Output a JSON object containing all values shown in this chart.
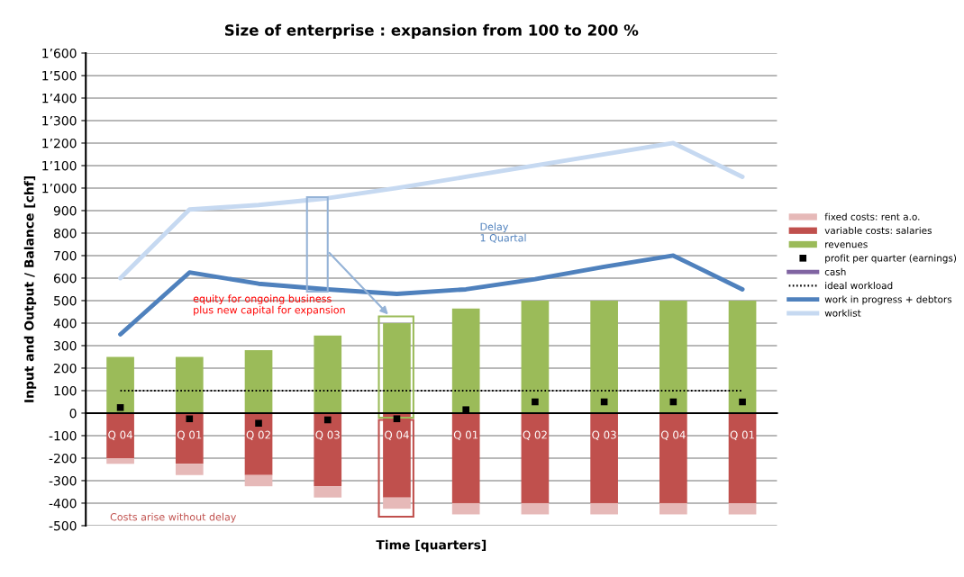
{
  "chart_data": {
    "type": "bar",
    "title": "Size of enterprise : expansion from 100 to 200 %",
    "xlabel": "Time [quarters]",
    "ylabel": "Input and Output / Balance [chf]",
    "categories": [
      "Q 04",
      "Q 01",
      "Q 02",
      "Q 03",
      "Q 04",
      "Q 01",
      "Q 02",
      "Q 03",
      "Q 04",
      "Q 01"
    ],
    "stacked": true,
    "series": [
      {
        "name": "revenues",
        "color": "#9bbb59",
        "values": [
          250,
          250,
          280,
          345,
          400,
          465,
          500,
          500,
          500,
          500
        ]
      },
      {
        "name": "variable costs: salaries",
        "color": "#c0504d",
        "values": [
          -200,
          -225,
          -275,
          -325,
          -375,
          -400,
          -400,
          -400,
          -400,
          -400
        ]
      },
      {
        "name": "fixed costs: rent a.o.",
        "color": "#e6b9b8",
        "values": [
          -25,
          -50,
          -50,
          -50,
          -50,
          -50,
          -50,
          -50,
          -50,
          -50
        ]
      },
      {
        "name": "profit per quarter (earnings)",
        "type": "scatter",
        "marker": "square",
        "color": "#000000",
        "values": [
          25,
          -25,
          -45,
          -30,
          -25,
          15,
          50,
          50,
          50,
          50
        ]
      },
      {
        "name": "cash",
        "type": "line",
        "color": "#8064a2",
        "values": [
          null,
          null,
          null,
          null,
          null,
          null,
          null,
          null,
          null,
          null
        ]
      },
      {
        "name": "ideal workload",
        "type": "line",
        "line_style": "dotted",
        "color": "#000000",
        "values": [
          100,
          100,
          100,
          100,
          100,
          100,
          100,
          100,
          100,
          100
        ]
      },
      {
        "name": "work in progress + debtors",
        "type": "line",
        "color": "#4f81bd",
        "values": [
          350,
          625,
          575,
          550,
          530,
          550,
          595,
          650,
          700,
          550
        ]
      },
      {
        "name": "worklist",
        "type": "line",
        "color": "#c6d9f1",
        "values": [
          600,
          905,
          925,
          955,
          1000,
          1050,
          1100,
          1150,
          1200,
          1050
        ]
      }
    ],
    "ylim": [
      -500,
      1600
    ],
    "yticks": [
      -500,
      -400,
      -300,
      -200,
      -100,
      0,
      100,
      200,
      300,
      400,
      500,
      600,
      700,
      800,
      900,
      {
        "value": 1000,
        "label": "1’000"
      },
      {
        "value": 1100,
        "label": "1’100"
      },
      {
        "value": 1200,
        "label": "1’200"
      },
      {
        "value": 1300,
        "label": "1’300"
      },
      {
        "value": 1400,
        "label": "1’400"
      },
      {
        "value": 1500,
        "label": "1’500"
      },
      {
        "value": 1600,
        "label": "1’600"
      }
    ],
    "grid": "y",
    "legend": "right",
    "annotations": [
      "Delay\n1 Quartal",
      "equity for ongoing business\nplus new capital for expansion",
      "Costs arise without delay"
    ]
  }
}
